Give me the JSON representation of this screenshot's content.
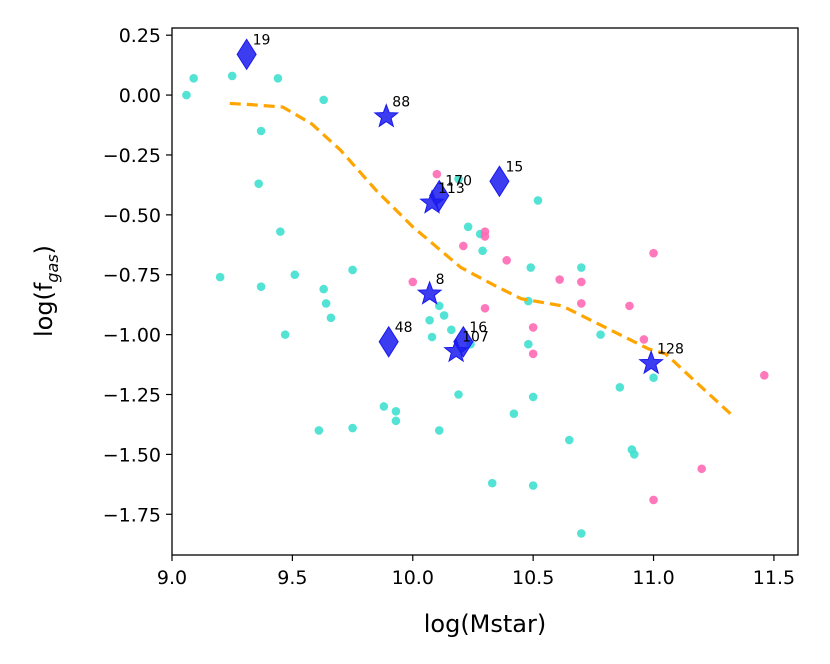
{
  "chart_data": {
    "type": "scatter",
    "xlabel": "log(Mstar)",
    "ylabel_main": "log(f",
    "ylabel_sub": "gas",
    "ylabel_close": ")",
    "xlim": [
      9.0,
      11.6
    ],
    "ylim": [
      -1.92,
      0.28
    ],
    "xticks": [
      9.0,
      9.5,
      10.0,
      10.5,
      11.0,
      11.5
    ],
    "xtick_labels": [
      "9.0",
      "9.5",
      "10.0",
      "10.5",
      "11.0",
      "11.5"
    ],
    "yticks": [
      0.25,
      0.0,
      -0.25,
      -0.5,
      -0.75,
      -1.0,
      -1.25,
      -1.5,
      -1.75
    ],
    "ytick_labels": [
      "0.25",
      "0.00",
      "−0.25",
      "−0.50",
      "−0.75",
      "−1.00",
      "−1.25",
      "−1.50",
      "−1.75"
    ],
    "grid": false,
    "colors": {
      "cyan": "#40E0D0",
      "pink": "#FF69B4",
      "marker_blue": "#1a1aee",
      "trend": "#FFA500"
    },
    "series": [
      {
        "color": "cyan",
        "points": [
          {
            "x": 9.06,
            "y": 0.0
          },
          {
            "x": 9.09,
            "y": 0.07
          },
          {
            "x": 9.25,
            "y": 0.08
          },
          {
            "x": 9.44,
            "y": 0.07
          },
          {
            "x": 9.63,
            "y": -0.02
          },
          {
            "x": 9.37,
            "y": -0.15
          },
          {
            "x": 9.36,
            "y": -0.37
          },
          {
            "x": 9.45,
            "y": -0.57
          },
          {
            "x": 9.2,
            "y": -0.76
          },
          {
            "x": 9.37,
            "y": -0.8
          },
          {
            "x": 9.51,
            "y": -0.75
          },
          {
            "x": 9.63,
            "y": -0.81
          },
          {
            "x": 9.64,
            "y": -0.87
          },
          {
            "x": 9.66,
            "y": -0.93
          },
          {
            "x": 9.47,
            "y": -1.0
          },
          {
            "x": 9.75,
            "y": -0.73
          },
          {
            "x": 9.88,
            "y": -1.3
          },
          {
            "x": 9.93,
            "y": -1.32
          },
          {
            "x": 9.93,
            "y": -1.36
          },
          {
            "x": 9.61,
            "y": -1.4
          },
          {
            "x": 9.75,
            "y": -1.39
          },
          {
            "x": 10.11,
            "y": -1.4
          },
          {
            "x": 10.07,
            "y": -0.94
          },
          {
            "x": 10.08,
            "y": -1.01
          },
          {
            "x": 10.11,
            "y": -0.88
          },
          {
            "x": 10.13,
            "y": -0.92
          },
          {
            "x": 10.16,
            "y": -0.98
          },
          {
            "x": 10.19,
            "y": -1.25
          },
          {
            "x": 10.24,
            "y": -1.04
          },
          {
            "x": 10.19,
            "y": -0.35
          },
          {
            "x": 10.23,
            "y": -0.55
          },
          {
            "x": 10.28,
            "y": -0.58
          },
          {
            "x": 10.29,
            "y": -0.65
          },
          {
            "x": 10.33,
            "y": -1.62
          },
          {
            "x": 10.42,
            "y": -1.33
          },
          {
            "x": 10.48,
            "y": -0.86
          },
          {
            "x": 10.48,
            "y": -1.04
          },
          {
            "x": 10.49,
            "y": -0.72
          },
          {
            "x": 10.5,
            "y": -1.26
          },
          {
            "x": 10.5,
            "y": -1.63
          },
          {
            "x": 10.52,
            "y": -0.44
          },
          {
            "x": 10.65,
            "y": -1.44
          },
          {
            "x": 10.7,
            "y": -0.72
          },
          {
            "x": 10.7,
            "y": -1.83
          },
          {
            "x": 10.78,
            "y": -1.0
          },
          {
            "x": 10.86,
            "y": -1.22
          },
          {
            "x": 10.91,
            "y": -1.48
          },
          {
            "x": 10.92,
            "y": -1.5
          },
          {
            "x": 11.0,
            "y": -1.18
          }
        ]
      },
      {
        "color": "pink",
        "points": [
          {
            "x": 10.1,
            "y": -0.33
          },
          {
            "x": 10.0,
            "y": -0.78
          },
          {
            "x": 10.21,
            "y": -0.63
          },
          {
            "x": 10.3,
            "y": -0.57
          },
          {
            "x": 10.3,
            "y": -0.59
          },
          {
            "x": 10.39,
            "y": -0.69
          },
          {
            "x": 10.3,
            "y": -0.89
          },
          {
            "x": 10.5,
            "y": -0.97
          },
          {
            "x": 10.5,
            "y": -1.08
          },
          {
            "x": 10.61,
            "y": -0.77
          },
          {
            "x": 10.7,
            "y": -0.78
          },
          {
            "x": 10.7,
            "y": -0.87
          },
          {
            "x": 10.9,
            "y": -0.88
          },
          {
            "x": 10.96,
            "y": -1.02
          },
          {
            "x": 11.0,
            "y": -0.66
          },
          {
            "x": 11.0,
            "y": -1.69
          },
          {
            "x": 11.2,
            "y": -1.56
          },
          {
            "x": 11.46,
            "y": -1.17
          }
        ]
      }
    ],
    "stars": [
      {
        "x": 9.89,
        "y": -0.09,
        "label": "88"
      },
      {
        "x": 10.08,
        "y": -0.45,
        "label": "113"
      },
      {
        "x": 10.07,
        "y": -0.83,
        "label": "8"
      },
      {
        "x": 10.18,
        "y": -1.07,
        "label": "107"
      },
      {
        "x": 10.99,
        "y": -1.12,
        "label": "128"
      }
    ],
    "diamonds": [
      {
        "x": 9.31,
        "y": 0.17,
        "label": "19"
      },
      {
        "x": 10.11,
        "y": -0.42,
        "label": "170"
      },
      {
        "x": 10.36,
        "y": -0.36,
        "label": "15"
      },
      {
        "x": 9.9,
        "y": -1.03,
        "label": "48"
      },
      {
        "x": 10.21,
        "y": -1.03,
        "label": "16"
      }
    ],
    "trend_line": {
      "x": [
        9.24,
        9.33,
        9.46,
        9.58,
        9.7,
        9.85,
        10.0,
        10.2,
        10.35,
        10.45,
        10.62,
        10.8,
        10.98,
        11.05,
        11.2,
        11.33
      ],
      "y": [
        -0.035,
        -0.04,
        -0.05,
        -0.12,
        -0.23,
        -0.4,
        -0.55,
        -0.72,
        -0.8,
        -0.85,
        -0.88,
        -0.97,
        -1.06,
        -1.08,
        -1.22,
        -1.34
      ]
    }
  }
}
